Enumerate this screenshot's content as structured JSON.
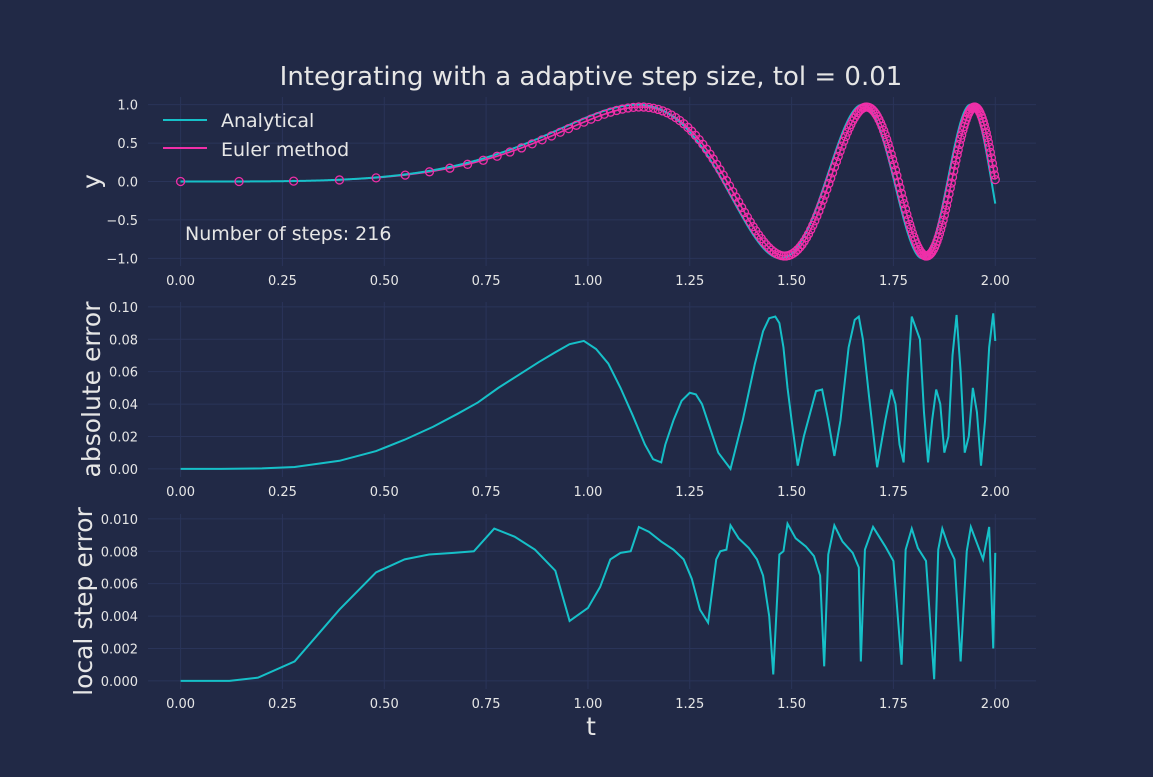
{
  "colors": {
    "background": "#212946",
    "grid": "#2a3459",
    "text": "#e6e6e6",
    "analytical": "#16c0c8",
    "euler": "#f02fa8",
    "error": "#16c0c8"
  },
  "figure": {
    "title": "Integrating with a adaptive step size, tol = 0.01",
    "xlabel": "t"
  },
  "chart_data": [
    {
      "type": "line",
      "ylabel": "y",
      "xlim": [
        -0.08,
        2.1
      ],
      "ylim": [
        -1.1,
        1.1
      ],
      "xticks": [
        0.0,
        0.25,
        0.5,
        0.75,
        1.0,
        1.25,
        1.5,
        1.75,
        2.0
      ],
      "xtick_labels": [
        "0.00",
        "0.25",
        "0.50",
        "0.75",
        "1.00",
        "1.25",
        "1.50",
        "1.75",
        "2.00"
      ],
      "yticks": [
        -1.0,
        -0.5,
        0.0,
        0.5,
        1.0
      ],
      "ytick_labels": [
        "−1.0",
        "−0.5",
        "0.0",
        "0.5",
        "1.0"
      ],
      "grid": true,
      "legend": {
        "placement": "top-left",
        "entries": [
          {
            "label": "Analytical",
            "color_key": "analytical"
          },
          {
            "label": "Euler method",
            "color_key": "euler"
          }
        ]
      },
      "annotation": "Number of steps: 216",
      "series": [
        {
          "name": "Analytical",
          "function": "sin(t^4)",
          "x_range": [
            0,
            2
          ]
        },
        {
          "name": "Euler method",
          "marker": "circle",
          "function": "sin(t^4) with steps shown",
          "x_range": [
            0,
            2
          ],
          "steps": 216
        }
      ]
    },
    {
      "type": "line",
      "ylabel": "absolute error",
      "xlim": [
        -0.08,
        2.1
      ],
      "ylim": [
        -0.005,
        0.103
      ],
      "xticks": [
        0.0,
        0.25,
        0.5,
        0.75,
        1.0,
        1.25,
        1.5,
        1.75,
        2.0
      ],
      "xtick_labels": [
        "0.00",
        "0.25",
        "0.50",
        "0.75",
        "1.00",
        "1.25",
        "1.50",
        "1.75",
        "2.00"
      ],
      "yticks": [
        0.0,
        0.02,
        0.04,
        0.06,
        0.08,
        0.1
      ],
      "ytick_labels": [
        "0.00",
        "0.02",
        "0.04",
        "0.06",
        "0.08",
        "0.10"
      ],
      "grid": true,
      "series": [
        {
          "name": "absolute error",
          "x": [
            0.0,
            0.1,
            0.2,
            0.28,
            0.39,
            0.48,
            0.55,
            0.62,
            0.68,
            0.73,
            0.78,
            0.83,
            0.88,
            0.92,
            0.955,
            0.99,
            1.02,
            1.05,
            1.08,
            1.11,
            1.14,
            1.16,
            1.18,
            1.19,
            1.21,
            1.23,
            1.25,
            1.265,
            1.28,
            1.3,
            1.32,
            1.35,
            1.38,
            1.41,
            1.43,
            1.445,
            1.46,
            1.47,
            1.48,
            1.49,
            1.5,
            1.515,
            1.53,
            1.56,
            1.575,
            1.59,
            1.605,
            1.62,
            1.64,
            1.655,
            1.665,
            1.675,
            1.69,
            1.71,
            1.73,
            1.745,
            1.755,
            1.765,
            1.775,
            1.785,
            1.795,
            1.815,
            1.825,
            1.835,
            1.845,
            1.855,
            1.865,
            1.875,
            1.885,
            1.895,
            1.905,
            1.915,
            1.925,
            1.935,
            1.945,
            1.955,
            1.965,
            1.975,
            1.985,
            1.995,
            2.0
          ],
          "values": [
            0.0,
            0.0,
            0.0003,
            0.0012,
            0.005,
            0.011,
            0.018,
            0.026,
            0.034,
            0.041,
            0.05,
            0.058,
            0.066,
            0.072,
            0.077,
            0.079,
            0.074,
            0.065,
            0.05,
            0.033,
            0.015,
            0.006,
            0.004,
            0.015,
            0.03,
            0.042,
            0.047,
            0.046,
            0.04,
            0.025,
            0.01,
            0.0,
            0.03,
            0.065,
            0.085,
            0.093,
            0.094,
            0.09,
            0.075,
            0.05,
            0.03,
            0.002,
            0.02,
            0.048,
            0.049,
            0.03,
            0.008,
            0.03,
            0.075,
            0.092,
            0.094,
            0.08,
            0.045,
            0.001,
            0.03,
            0.049,
            0.04,
            0.015,
            0.004,
            0.055,
            0.094,
            0.08,
            0.035,
            0.004,
            0.03,
            0.049,
            0.04,
            0.01,
            0.02,
            0.07,
            0.095,
            0.06,
            0.01,
            0.02,
            0.05,
            0.035,
            0.002,
            0.03,
            0.075,
            0.096,
            0.079
          ]
        }
      ]
    },
    {
      "type": "line",
      "ylabel": "local step error",
      "xlabel": "t",
      "xlim": [
        -0.08,
        2.1
      ],
      "ylim": [
        -0.0005,
        0.0103
      ],
      "xticks": [
        0.0,
        0.25,
        0.5,
        0.75,
        1.0,
        1.25,
        1.5,
        1.75,
        2.0
      ],
      "xtick_labels": [
        "0.00",
        "0.25",
        "0.50",
        "0.75",
        "1.00",
        "1.25",
        "1.50",
        "1.75",
        "2.00"
      ],
      "yticks": [
        0.0,
        0.002,
        0.004,
        0.006,
        0.008,
        0.01
      ],
      "ytick_labels": [
        "0.000",
        "0.002",
        "0.004",
        "0.006",
        "0.008",
        "0.010"
      ],
      "grid": true,
      "series": [
        {
          "name": "local step error",
          "x": [
            0.0,
            0.12,
            0.19,
            0.28,
            0.39,
            0.48,
            0.55,
            0.61,
            0.67,
            0.72,
            0.77,
            0.82,
            0.87,
            0.92,
            0.955,
            1.0,
            1.03,
            1.055,
            1.08,
            1.105,
            1.125,
            1.15,
            1.18,
            1.21,
            1.235,
            1.255,
            1.275,
            1.295,
            1.315,
            1.325,
            1.34,
            1.35,
            1.37,
            1.395,
            1.415,
            1.43,
            1.445,
            1.455,
            1.47,
            1.48,
            1.49,
            1.51,
            1.535,
            1.555,
            1.57,
            1.58,
            1.59,
            1.605,
            1.625,
            1.65,
            1.665,
            1.67,
            1.68,
            1.7,
            1.73,
            1.75,
            1.77,
            1.78,
            1.795,
            1.81,
            1.83,
            1.85,
            1.86,
            1.87,
            1.885,
            1.9,
            1.915,
            1.93,
            1.94,
            1.955,
            1.97,
            1.985,
            1.995,
            2.0
          ],
          "values": [
            0.0,
            0.0,
            0.0002,
            0.0012,
            0.0044,
            0.0067,
            0.0075,
            0.0078,
            0.0079,
            0.008,
            0.0094,
            0.0089,
            0.0081,
            0.0068,
            0.0037,
            0.0045,
            0.0058,
            0.0075,
            0.0079,
            0.008,
            0.0095,
            0.0092,
            0.0086,
            0.0081,
            0.0075,
            0.0063,
            0.0044,
            0.0036,
            0.0075,
            0.008,
            0.0081,
            0.0096,
            0.0088,
            0.0082,
            0.0075,
            0.0065,
            0.004,
            0.0004,
            0.0078,
            0.008,
            0.0097,
            0.0088,
            0.0083,
            0.0077,
            0.0065,
            0.0009,
            0.0078,
            0.0096,
            0.0086,
            0.0079,
            0.007,
            0.0012,
            0.0081,
            0.0095,
            0.0083,
            0.0074,
            0.001,
            0.0081,
            0.0094,
            0.0082,
            0.0074,
            0.0001,
            0.0081,
            0.0094,
            0.0083,
            0.0075,
            0.0012,
            0.008,
            0.0095,
            0.0085,
            0.0075,
            0.0095,
            0.002,
            0.0079
          ]
        }
      ]
    }
  ]
}
